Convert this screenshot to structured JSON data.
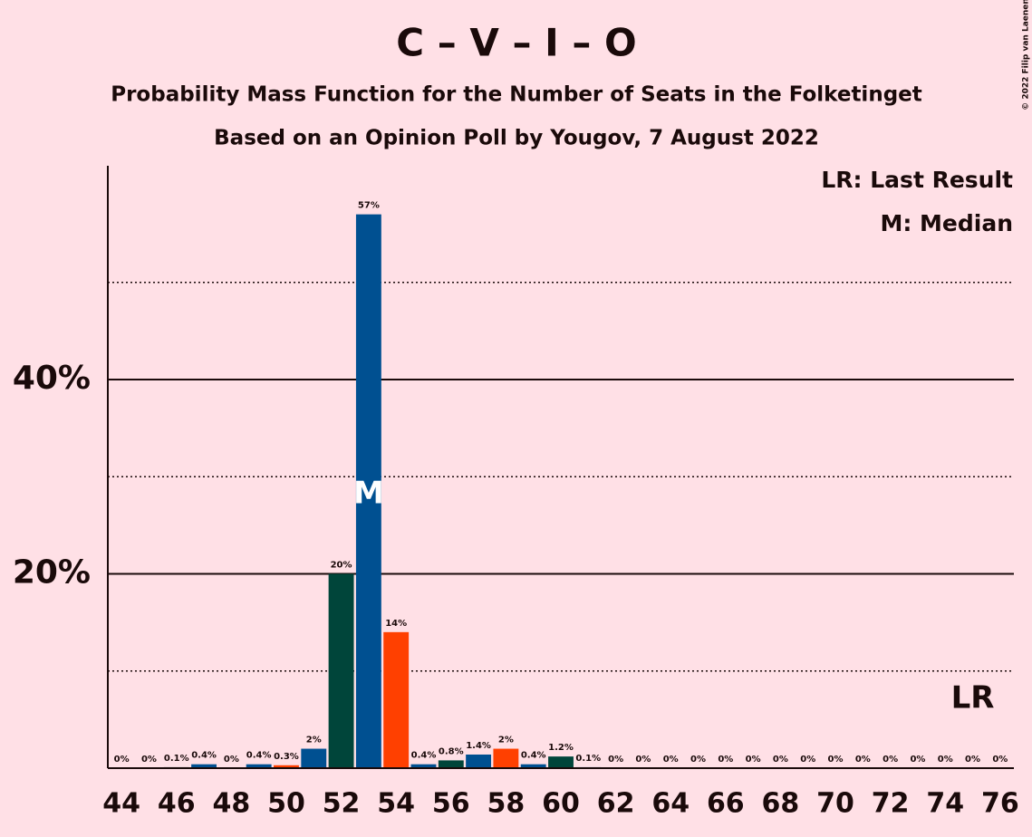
{
  "chart_data": {
    "type": "bar",
    "title": "C – V – I – O",
    "subtitle": "Probability Mass Function for the Number of Seats in the Folketinget",
    "subtitle2": "Based on an Opinion Poll by Yougov, 7 August 2022",
    "legend": [
      "LR: Last Result",
      "M: Median"
    ],
    "copyright": "© 2022 Filip van Laenen",
    "x": [
      44,
      45,
      46,
      47,
      48,
      49,
      50,
      51,
      52,
      53,
      54,
      55,
      56,
      57,
      58,
      59,
      60,
      61,
      62,
      63,
      64,
      65,
      66,
      67,
      68,
      69,
      70,
      71,
      72,
      73,
      74,
      75,
      76
    ],
    "values": [
      0,
      0,
      0.1,
      0.4,
      0,
      0.4,
      0.3,
      2,
      20,
      57,
      14,
      0.4,
      0.8,
      1.4,
      2,
      0.4,
      1.2,
      0.1,
      0,
      0,
      0,
      0,
      0,
      0,
      0,
      0,
      0,
      0,
      0,
      0,
      0,
      0,
      0
    ],
    "value_labels": [
      "0%",
      "0%",
      "0.1%",
      "0.4%",
      "0%",
      "0.4%",
      "0.3%",
      "2%",
      "20%",
      "57%",
      "14%",
      "0.4%",
      "0.8%",
      "1.4%",
      "2%",
      "0.4%",
      "1.2%",
      "0.1%",
      "0%",
      "0%",
      "0%",
      "0%",
      "0%",
      "0%",
      "0%",
      "0%",
      "0%",
      "0%",
      "0%",
      "0%",
      "0%",
      "0%",
      "0%"
    ],
    "colors": [
      "#ff4000",
      "#005091",
      "#00453a",
      "#005091",
      "#ff4000",
      "#005091",
      "#ff4000",
      "#005091",
      "#00453a",
      "#005091",
      "#ff4000",
      "#005091",
      "#00453a",
      "#005091",
      "#ff4000",
      "#005091",
      "#00453a",
      "#005091",
      "#ff4000",
      "#005091",
      "#00453a",
      "#005091",
      "#ff4000",
      "#005091",
      "#00453a",
      "#005091",
      "#ff4000",
      "#005091",
      "#00453a",
      "#005091",
      "#ff4000",
      "#005091",
      "#00453a"
    ],
    "xlim": [
      43.5,
      76.5
    ],
    "xticks": [
      44,
      46,
      48,
      50,
      52,
      54,
      56,
      58,
      60,
      62,
      64,
      66,
      68,
      70,
      72,
      74,
      76
    ],
    "ylim": [
      0,
      62
    ],
    "yticks": [
      {
        "value": 20,
        "label": "20%"
      },
      {
        "value": 40,
        "label": "40%"
      }
    ],
    "minor_yticks": [
      10,
      30,
      50
    ],
    "median": {
      "label": "M",
      "x": 53
    },
    "last_result": {
      "label": "LR",
      "x": 75
    }
  }
}
